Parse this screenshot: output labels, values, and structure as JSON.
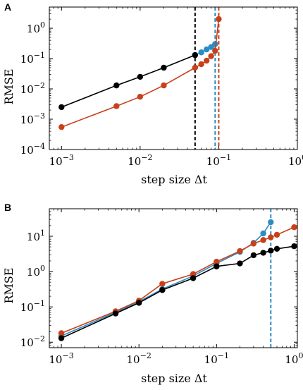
{
  "chart_data": [
    {
      "panel_label": "A",
      "type": "line",
      "xscale": "log",
      "yscale": "log",
      "xlim": [
        0.0007,
        1.0
      ],
      "ylim": [
        0.0001,
        5.0
      ],
      "xlabel": "step size Δt",
      "ylabel": "RMSE",
      "xticks": [
        {
          "value": 0.001,
          "base": "10",
          "exp": "-3"
        },
        {
          "value": 0.01,
          "base": "10",
          "exp": "-2"
        },
        {
          "value": 0.1,
          "base": "10",
          "exp": "-1"
        },
        {
          "value": 1,
          "base": "10",
          "exp": "0"
        }
      ],
      "yticks": [
        {
          "value": 0.0001,
          "base": "10",
          "exp": "-4"
        },
        {
          "value": 0.001,
          "base": "10",
          "exp": "-3"
        },
        {
          "value": 0.01,
          "base": "10",
          "exp": "-2"
        },
        {
          "value": 0.1,
          "base": "10",
          "exp": "-1"
        },
        {
          "value": 1,
          "base": "10",
          "exp": "0"
        }
      ],
      "series": [
        {
          "color": "#2b8cc4",
          "x": [
            0.05,
            0.06,
            0.07,
            0.08,
            0.09
          ],
          "y": [
            0.13,
            0.16,
            0.2,
            0.24,
            0.3
          ]
        },
        {
          "color": "#c8401a",
          "x": [
            0.001,
            0.005,
            0.01,
            0.02,
            0.05,
            0.06,
            0.07,
            0.08,
            0.09,
            0.1
          ],
          "y": [
            0.00055,
            0.0027,
            0.0055,
            0.013,
            0.05,
            0.065,
            0.085,
            0.12,
            0.18,
            2.0
          ]
        },
        {
          "color": "#000000",
          "x": [
            0.001,
            0.005,
            0.01,
            0.02,
            0.05
          ],
          "y": [
            0.0025,
            0.013,
            0.025,
            0.05,
            0.13
          ]
        }
      ],
      "vlines": [
        {
          "x": 0.05,
          "color": "#000000"
        },
        {
          "x": 0.09,
          "color": "#2b8cc4"
        },
        {
          "x": 0.1,
          "color": "#c8401a"
        }
      ]
    },
    {
      "panel_label": "B",
      "type": "line",
      "xscale": "log",
      "yscale": "log",
      "xlim": [
        0.0007,
        1.1
      ],
      "ylim": [
        0.007,
        60
      ],
      "xlabel": "step size Δt",
      "ylabel": "RMSE",
      "xticks": [
        {
          "value": 0.001,
          "base": "10",
          "exp": "-3"
        },
        {
          "value": 0.01,
          "base": "10",
          "exp": "-2"
        },
        {
          "value": 0.1,
          "base": "10",
          "exp": "-1"
        },
        {
          "value": 1,
          "base": "10",
          "exp": "0"
        }
      ],
      "yticks": [
        {
          "value": 0.01,
          "base": "10",
          "exp": "-2"
        },
        {
          "value": 0.1,
          "base": "10",
          "exp": "-1"
        },
        {
          "value": 1,
          "base": "10",
          "exp": "0"
        },
        {
          "value": 10,
          "base": "10",
          "exp": "1"
        }
      ],
      "series": [
        {
          "color": "#2b8cc4",
          "x": [
            0.001,
            0.005,
            0.01,
            0.02,
            0.05,
            0.1,
            0.2,
            0.3,
            0.4,
            0.5
          ],
          "y": [
            0.015,
            0.07,
            0.14,
            0.32,
            0.75,
            1.7,
            3.6,
            6.5,
            12.0,
            25.0
          ]
        },
        {
          "color": "#c8401a",
          "x": [
            0.001,
            0.005,
            0.01,
            0.02,
            0.05,
            0.1,
            0.2,
            0.3,
            0.4,
            0.5,
            0.6,
            1.0
          ],
          "y": [
            0.018,
            0.075,
            0.15,
            0.45,
            0.85,
            1.9,
            3.8,
            6.2,
            7.8,
            9.3,
            11.0,
            18.0
          ]
        },
        {
          "color": "#000000",
          "x": [
            0.001,
            0.005,
            0.01,
            0.02,
            0.05,
            0.1,
            0.2,
            0.3,
            0.4,
            0.5,
            0.6,
            1.0
          ],
          "y": [
            0.013,
            0.065,
            0.13,
            0.3,
            0.65,
            1.4,
            1.7,
            2.9,
            3.4,
            3.9,
            4.4,
            5.2
          ]
        }
      ],
      "vlines": [
        {
          "x": 0.5,
          "color": "#2b8cc4"
        }
      ]
    }
  ]
}
